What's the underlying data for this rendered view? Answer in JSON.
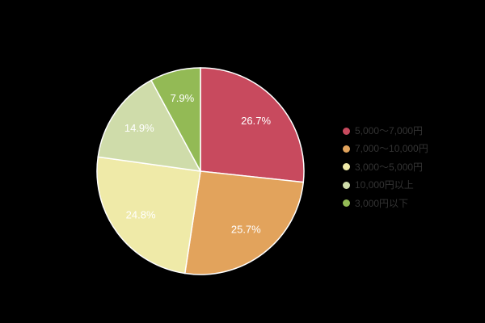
{
  "background": "#000000",
  "chart_data": {
    "type": "pie",
    "title": "",
    "legend_position": "right",
    "start_angle_deg": 0,
    "direction": "clockwise",
    "slice_label_color": "#ffffff",
    "legend_text_color": "#333333",
    "slice_border_color": "#ffffff",
    "series": [
      {
        "label": "5,000〜7,000円",
        "value": 26.7,
        "display": "26.7%",
        "color": "#c84a5e"
      },
      {
        "label": "7,000〜10,000円",
        "value": 25.7,
        "display": "25.7%",
        "color": "#e2a35c"
      },
      {
        "label": "3,000〜5,000円",
        "value": 24.8,
        "display": "24.8%",
        "color": "#efeaa8"
      },
      {
        "label": "10,000円以上",
        "value": 14.9,
        "display": "14.9%",
        "color": "#cfdcaa"
      },
      {
        "label": "3,000円以下",
        "value": 7.9,
        "display": "7.9%",
        "color": "#93ba55"
      }
    ]
  }
}
